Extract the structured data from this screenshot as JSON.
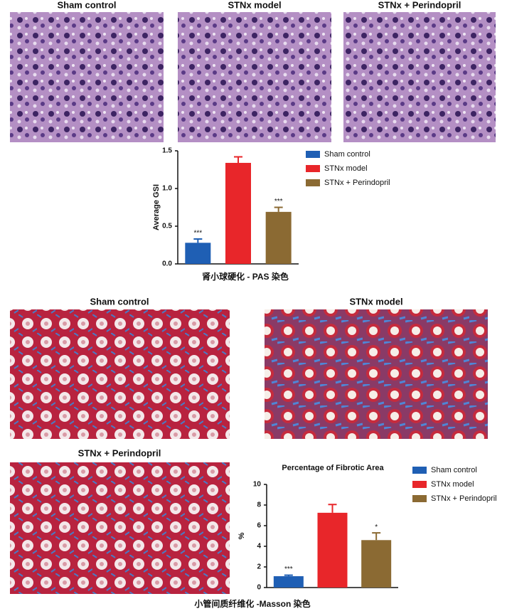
{
  "panels": {
    "pas": [
      "Sham control",
      "STNx model",
      "STNx + Perindopril"
    ],
    "masson": [
      "Sham control",
      "STNx model",
      "STNx + Perindopril"
    ]
  },
  "chart_data": [
    {
      "type": "bar",
      "ylabel": "Average GSI",
      "xlabel": "肾小球硬化 - PAS 染色",
      "ylim": [
        0,
        1.5
      ],
      "yticks": [
        {
          "value": 0,
          "label": "0.0"
        },
        0.5,
        {
          "value": 1,
          "label": "1.0"
        },
        1.5
      ],
      "series": [
        {
          "name": "Sham control",
          "color": "#1f5fb4",
          "values": [
            0.28
          ],
          "errors": [
            0.05
          ],
          "annotations": [
            "***"
          ]
        },
        {
          "name": "STNx model",
          "color": "#e8262a",
          "values": [
            1.34
          ],
          "errors": [
            0.08
          ],
          "annotations": [
            null
          ]
        },
        {
          "name": "STNx + Perindopril",
          "color": "#8b6a33",
          "values": [
            0.69
          ],
          "errors": [
            0.06
          ],
          "annotations": [
            "***"
          ]
        }
      ]
    },
    {
      "type": "bar",
      "title": "Percentage of Fibrotic Area",
      "ylabel": "%",
      "xlabel": "小管间质纤维化 -Masson 染色",
      "ylim": [
        0,
        10
      ],
      "yticks": [
        0,
        2,
        4,
        6,
        8,
        10
      ],
      "series": [
        {
          "name": "Sham control",
          "color": "#1f5fb4",
          "values": [
            1.1
          ],
          "errors": [
            0.1
          ],
          "annotations": [
            "***"
          ]
        },
        {
          "name": "STNx model",
          "color": "#e8262a",
          "values": [
            7.25
          ],
          "errors": [
            0.8
          ],
          "annotations": [
            null
          ]
        },
        {
          "name": "STNx + Perindopril",
          "color": "#8b6a33",
          "values": [
            4.6
          ],
          "errors": [
            0.7
          ],
          "annotations": [
            "*"
          ]
        }
      ]
    }
  ]
}
